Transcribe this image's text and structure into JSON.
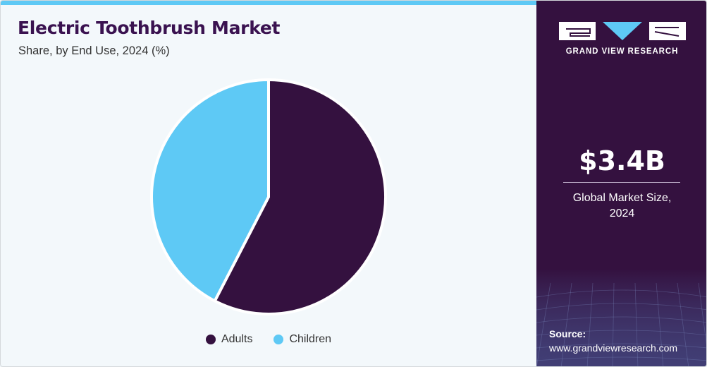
{
  "header": {
    "title": "Electric Toothbrush Market",
    "subtitle": "Share, by End Use, 2024 (%)"
  },
  "chart_data": {
    "type": "pie",
    "title": "Electric Toothbrush Market",
    "subtitle": "Share, by End Use, 2024 (%)",
    "categories": [
      "Adults",
      "Children"
    ],
    "values": [
      57.6,
      42.4
    ],
    "colors": [
      "#34113f",
      "#5ec9f5"
    ],
    "legend_position": "bottom"
  },
  "sidebar": {
    "brand": "GRAND VIEW RESEARCH",
    "metric_value": "$3.4B",
    "metric_label_line1": "Global Market Size,",
    "metric_label_line2": "2024",
    "source_title": "Source:",
    "source_url": "www.grandviewresearch.com"
  }
}
